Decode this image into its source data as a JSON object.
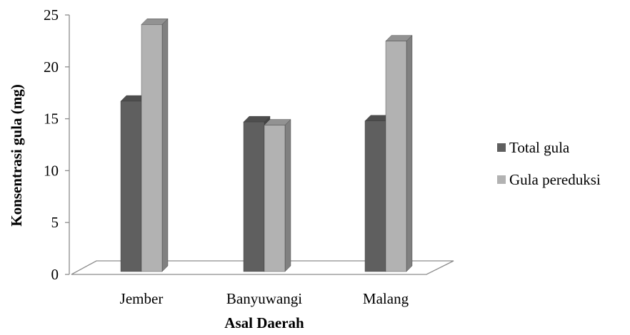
{
  "chart_data": {
    "type": "bar",
    "title": "",
    "xlabel": "Asal Daerah",
    "ylabel": "Konsentrasi gula (mg)",
    "categories": [
      "Jember",
      "Banyuwangi",
      "Malang"
    ],
    "series": [
      {
        "name": "Total gula",
        "values": [
          17.1,
          15.1,
          15.2
        ],
        "color": "#5f5f5f"
      },
      {
        "name": "Gula pereduksi",
        "values": [
          24.5,
          14.8,
          22.9
        ],
        "color": "#b2b2b2"
      }
    ],
    "ylim": [
      0,
      25
    ],
    "yticks": [
      "0",
      "5",
      "10",
      "15",
      "20",
      "25"
    ],
    "grid": false,
    "legend_position": "right",
    "style": "3d-clustered-column"
  }
}
